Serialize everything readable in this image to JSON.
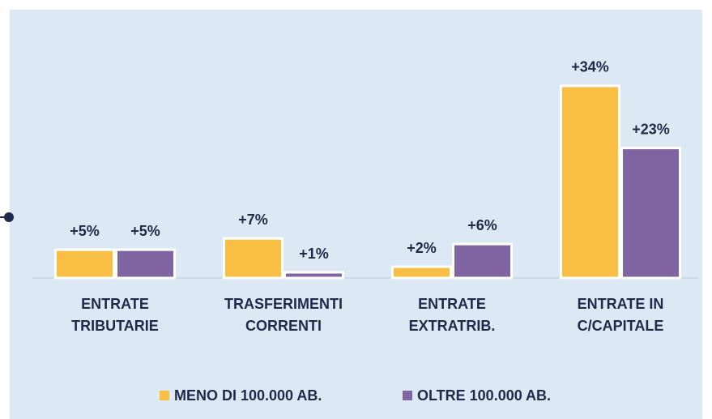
{
  "chart_data": {
    "type": "bar",
    "categories": [
      [
        "ENTRATE",
        "TRIBUTARIE"
      ],
      [
        "TRASFERIMENTI",
        "CORRENTI"
      ],
      [
        "ENTRATE",
        "EXTRATRIB."
      ],
      [
        "ENTRATE IN",
        "C/CAPITALE"
      ]
    ],
    "series": [
      {
        "name": "MENO DI 100.000 AB.",
        "color": "#f9bf45",
        "values": [
          5,
          7,
          2,
          34
        ],
        "value_labels": [
          "+5%",
          "+7%",
          "+2%",
          "+34%"
        ]
      },
      {
        "name": "OLTRE 100.000 AB.",
        "color": "#8064a2",
        "values": [
          5,
          1,
          6,
          23
        ],
        "value_labels": [
          "+5%",
          "+1%",
          "+6%",
          "+23%"
        ]
      }
    ],
    "ylim": [
      0,
      36
    ],
    "legend": "bottom"
  }
}
